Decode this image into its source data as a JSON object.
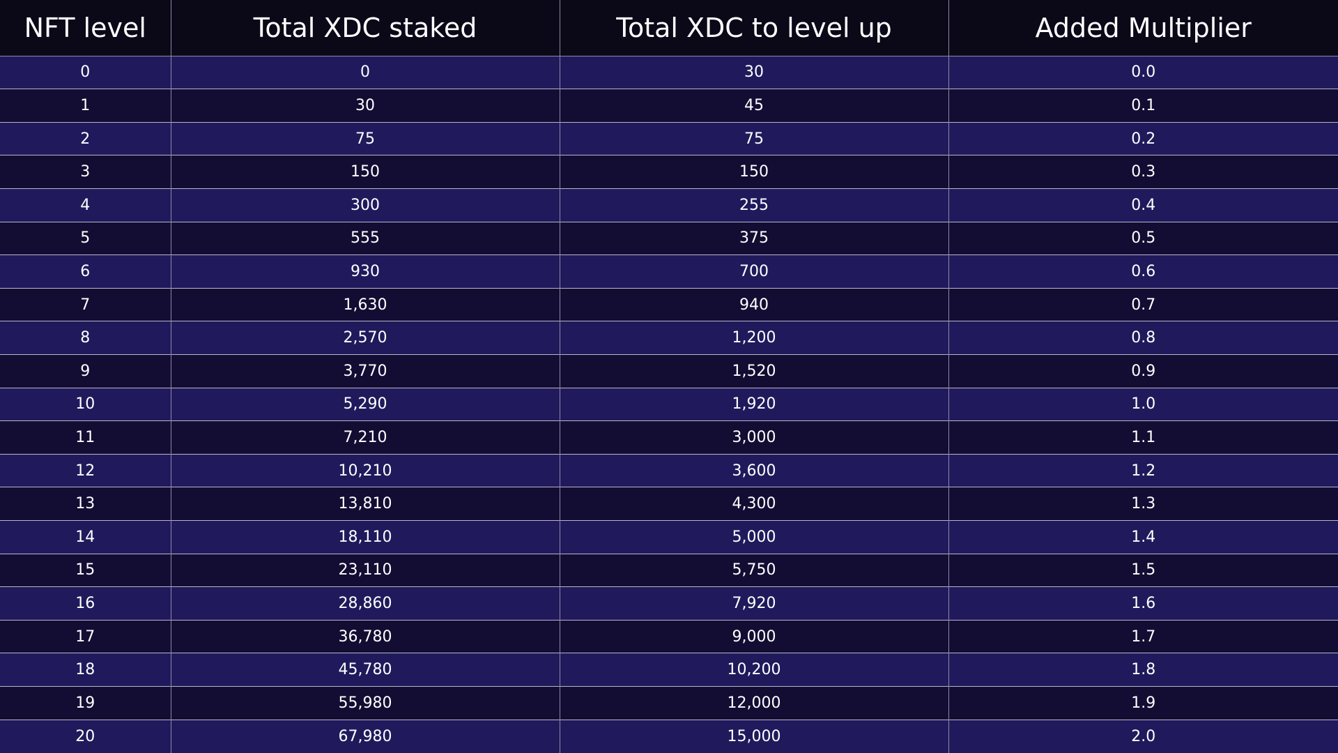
{
  "table": {
    "headers": [
      "NFT level",
      "Total XDC staked",
      "Total XDC to level up",
      "Added Multiplier"
    ],
    "rows": [
      [
        "0",
        "0",
        "30",
        "0.0"
      ],
      [
        "1",
        "30",
        "45",
        "0.1"
      ],
      [
        "2",
        "75",
        "75",
        "0.2"
      ],
      [
        "3",
        "150",
        "150",
        "0.3"
      ],
      [
        "4",
        "300",
        "255",
        "0.4"
      ],
      [
        "5",
        "555",
        "375",
        "0.5"
      ],
      [
        "6",
        "930",
        "700",
        "0.6"
      ],
      [
        "7",
        "1,630",
        "940",
        "0.7"
      ],
      [
        "8",
        "2,570",
        "1,200",
        "0.8"
      ],
      [
        "9",
        "3,770",
        "1,520",
        "0.9"
      ],
      [
        "10",
        "5,290",
        "1,920",
        "1.0"
      ],
      [
        "11",
        "7,210",
        "3,000",
        "1.1"
      ],
      [
        "12",
        "10,210",
        "3,600",
        "1.2"
      ],
      [
        "13",
        "13,810",
        "4,300",
        "1.3"
      ],
      [
        "14",
        "18,110",
        "5,000",
        "1.4"
      ],
      [
        "15",
        "23,110",
        "5,750",
        "1.5"
      ],
      [
        "16",
        "28,860",
        "7,920",
        "1.6"
      ],
      [
        "17",
        "36,780",
        "9,000",
        "1.7"
      ],
      [
        "18",
        "45,780",
        "10,200",
        "1.8"
      ],
      [
        "19",
        "55,980",
        "12,000",
        "1.9"
      ],
      [
        "20",
        "67,980",
        "15,000",
        "2.0"
      ]
    ]
  }
}
